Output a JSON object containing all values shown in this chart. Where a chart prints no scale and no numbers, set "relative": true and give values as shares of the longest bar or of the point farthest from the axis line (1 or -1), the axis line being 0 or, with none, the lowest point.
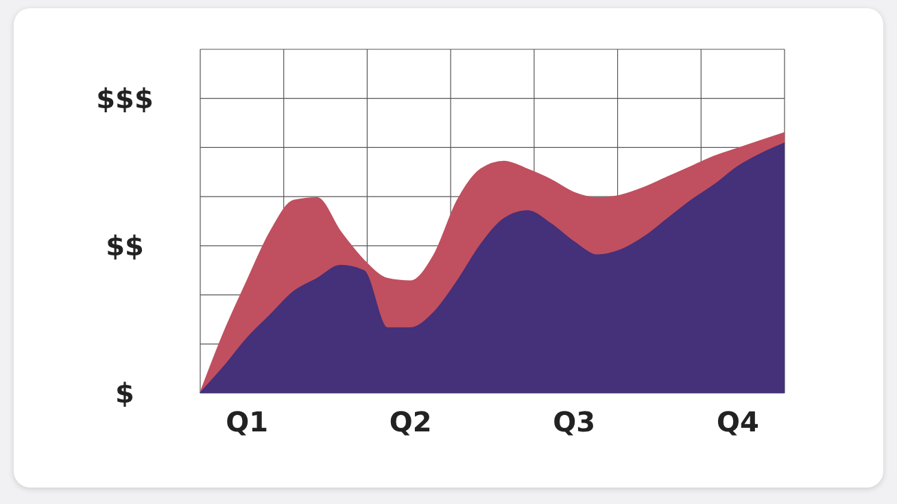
{
  "chart_data": {
    "type": "area",
    "grid": true,
    "relative": true,
    "categories": [
      null,
      null,
      "Q1",
      null,
      null,
      null,
      null,
      null,
      null,
      "Q2",
      null,
      null,
      null,
      null,
      null,
      null,
      "Q3",
      null,
      null,
      null,
      null,
      null,
      null,
      "Q4",
      null,
      null
    ],
    "annotations": [
      "$",
      "$$",
      "$$$"
    ],
    "series": [
      {
        "color": "#c0505f",
        "values": [
          0,
          0.23,
          0.43,
          0.62,
          0.74,
          0.75,
          0.62,
          0.51,
          0.44,
          0.43,
          0.53,
          0.74,
          0.86,
          0.89,
          0.86,
          0.82,
          0.77,
          0.75,
          0.76,
          0.79,
          0.83,
          0.87,
          0.91,
          0.94,
          0.97,
          1
        ]
      },
      {
        "color": "#45307a",
        "values": [
          0,
          0.1,
          0.21,
          0.3,
          0.39,
          0.44,
          0.49,
          0.47,
          0.25,
          0.25,
          0.31,
          0.43,
          0.57,
          0.67,
          0.7,
          0.65,
          0.58,
          0.53,
          0.55,
          0.6,
          0.67,
          0.74,
          0.8,
          0.87,
          0.92,
          0.96
        ]
      }
    ]
  }
}
